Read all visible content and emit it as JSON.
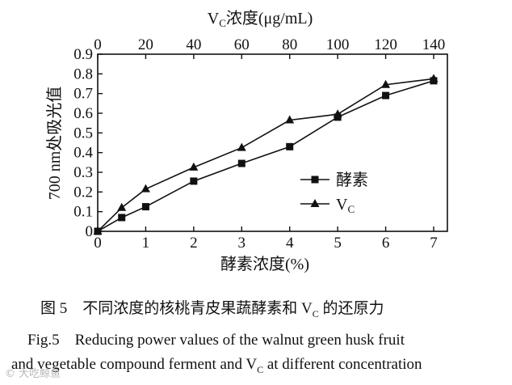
{
  "chart_data": {
    "type": "line",
    "title_top_axis": "VC浓度(μg/mL)",
    "top_axis": {
      "label_main": "V",
      "label_sub": "C",
      "label_rest": "浓度(μg/mL)",
      "ticks": [
        0,
        20,
        40,
        60,
        80,
        100,
        120,
        140
      ],
      "range": [
        0,
        140
      ]
    },
    "xlabel": "酵素浓度(%)",
    "ylabel": "700 nm处吸光值",
    "x_ticks": [
      0,
      1,
      2,
      3,
      4,
      5,
      6,
      7
    ],
    "xlim": [
      0,
      7.5
    ],
    "y_ticks": [
      "0",
      "0.1",
      "0.2",
      "0.3",
      "0.4",
      "0.5",
      "0.6",
      "0.7",
      "0.8",
      "0.9"
    ],
    "ylim": [
      0,
      0.9
    ],
    "series": [
      {
        "name": "酵素",
        "marker": "square",
        "axis": "bottom",
        "x": [
          0,
          0.5,
          1,
          2,
          3,
          4,
          5,
          6,
          7
        ],
        "y": [
          0.0,
          0.07,
          0.125,
          0.255,
          0.345,
          0.43,
          0.58,
          0.69,
          0.765
        ]
      },
      {
        "name": "VC",
        "name_main": "V",
        "name_sub": "C",
        "marker": "triangle",
        "axis": "top",
        "x": [
          0,
          10,
          20,
          40,
          60,
          80,
          100,
          120,
          140
        ],
        "y": [
          0.0,
          0.12,
          0.215,
          0.325,
          0.425,
          0.565,
          0.595,
          0.745,
          0.775
        ]
      }
    ],
    "legend_position": "center-right",
    "grid": false
  },
  "caption": {
    "cn_prefix": "图 5　不同浓度的核桃青皮果蔬酵素和 V",
    "cn_sub": "C",
    "cn_suffix": " 的还原力",
    "en_line1": "Fig.5　Reducing power values of the walnut green husk fruit",
    "en_line2_prefix": "and vegetable compound ferment and V",
    "en_line2_sub": "C",
    "en_line2_suffix": " at different concentration"
  },
  "watermark": "© 大吃鲸鱼"
}
